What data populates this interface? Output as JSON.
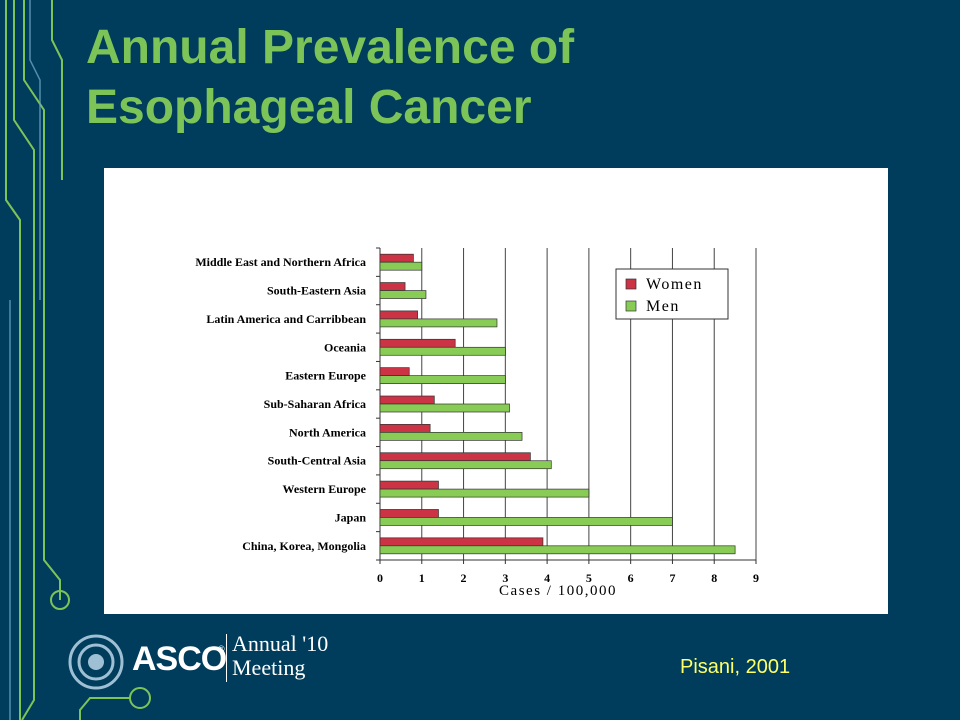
{
  "slide": {
    "title_line1": "Annual Prevalence of",
    "title_line2": "Esophageal Cancer",
    "credit": "Pisani, 2001"
  },
  "logo": {
    "asco": "ASCO",
    "registered": "®",
    "annual": "Annual '10",
    "meeting": "Meeting"
  },
  "colors": {
    "background": "#003d5c",
    "title": "#7dc458",
    "credit": "#ffff66",
    "women": "#cc3344",
    "men": "#88cc55"
  },
  "chart_data": {
    "type": "bar",
    "orientation": "horizontal",
    "title": "",
    "xlabel": "Cases / 100,000",
    "ylabel": "",
    "xlim": [
      0,
      9
    ],
    "xticks": [
      "0",
      "1",
      "2",
      "3",
      "4",
      "5",
      "6",
      "7",
      "8",
      "9"
    ],
    "grid": "vertical",
    "legend_position": "top-right",
    "categories": [
      "Middle East and Northern Africa",
      "South-Eastern Asia",
      "Latin America and Carribbean",
      "Oceania",
      "Eastern Europe",
      "Sub-Saharan Africa",
      "North America",
      "South-Central Asia",
      "Western Europe",
      "Japan",
      "China, Korea, Mongolia"
    ],
    "series": [
      {
        "name": "Women",
        "color": "#cc3344",
        "values": [
          0.8,
          0.6,
          0.9,
          1.8,
          0.7,
          1.3,
          1.2,
          3.6,
          1.4,
          1.4,
          3.9
        ]
      },
      {
        "name": "Men",
        "color": "#88cc55",
        "values": [
          1.0,
          1.1,
          2.8,
          3.0,
          3.0,
          3.1,
          3.4,
          4.1,
          5.0,
          7.0,
          8.5
        ]
      }
    ]
  }
}
